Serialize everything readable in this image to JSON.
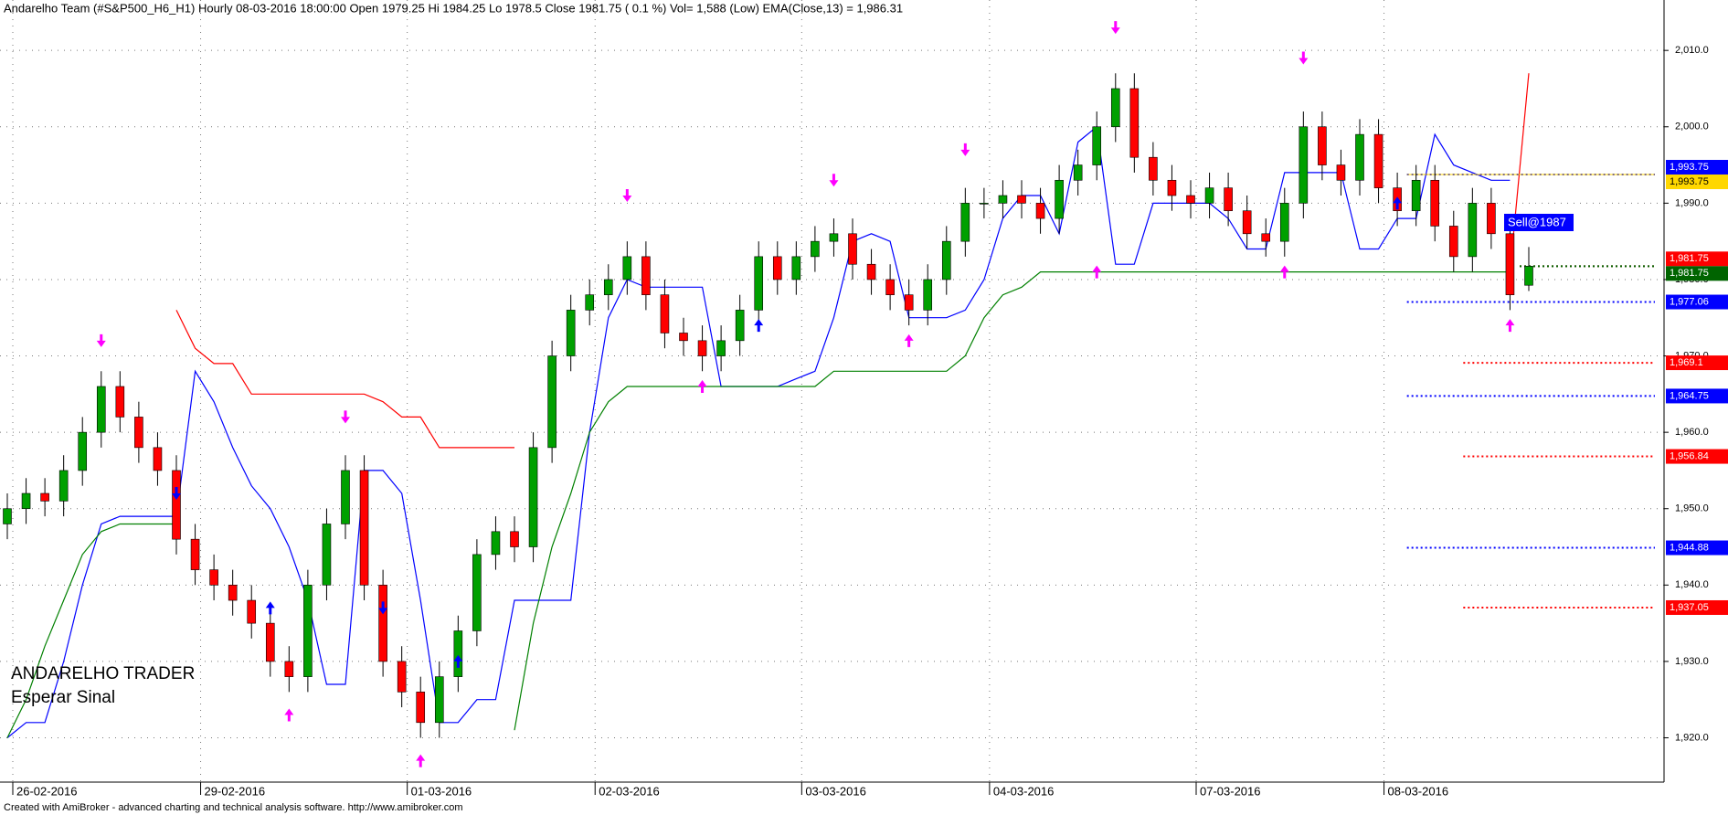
{
  "chart_data": {
    "type": "candlestick",
    "title": "Andarelho Team (#S&P500_H6_H1) Hourly  08-03-2016 18:00:00   Open 1979.25  Hi 1984.25  Lo 1978.5  Close 1981.75  ( 0.1 %)  Vol= 1,588 (Low)  EMA(Close,13) = 1,986.31",
    "categories": [
      "26-02-2016",
      null,
      null,
      null,
      null,
      null,
      null,
      null,
      null,
      null,
      "29-02-2016",
      null,
      null,
      null,
      null,
      null,
      null,
      null,
      null,
      null,
      null,
      "01-03-2016",
      null,
      null,
      null,
      null,
      null,
      null,
      null,
      null,
      null,
      "02-03-2016",
      null,
      null,
      null,
      null,
      null,
      null,
      null,
      null,
      null,
      null,
      "03-03-2016",
      null,
      null,
      null,
      null,
      null,
      null,
      null,
      null,
      null,
      "04-03-2016",
      null,
      null,
      null,
      null,
      null,
      null,
      null,
      null,
      null,
      null,
      "07-03-2016",
      null,
      null,
      null,
      null,
      null,
      null,
      null,
      null,
      null,
      "08-03-2016",
      null,
      null,
      null,
      null,
      null,
      null,
      null,
      null
    ],
    "open": [
      1948,
      1950,
      1952,
      1951,
      1955,
      1960,
      1966,
      1962,
      1958,
      1955,
      1946,
      1942,
      1940,
      1938,
      1935,
      1930,
      1928,
      1940,
      1948,
      1955,
      1940,
      1930,
      1926,
      1922,
      1928,
      1934,
      1944,
      1947,
      1945,
      1958,
      1970,
      1976,
      1978,
      1980,
      1983,
      1978,
      1973,
      1972,
      1970,
      1972,
      1976,
      1983,
      1980,
      1983,
      1985,
      1986,
      1982,
      1980,
      1978,
      1976,
      1980,
      1985,
      1990,
      1990,
      1991,
      1990,
      1988,
      1993,
      1995,
      2000,
      2005,
      1996,
      1993,
      1991,
      1990,
      1992,
      1989,
      1986,
      1985,
      1990,
      2000,
      1995,
      1993,
      1999,
      1992,
      1989,
      1993,
      1987,
      1983,
      1990,
      1986,
      1979.25
    ],
    "high": [
      1952,
      1954,
      1954,
      1957,
      1962,
      1968,
      1968,
      1964,
      1960,
      1957,
      1948,
      1944,
      1942,
      1940,
      1937,
      1932,
      1942,
      1950,
      1957,
      1957,
      1942,
      1932,
      1928,
      1930,
      1936,
      1946,
      1949,
      1949,
      1960,
      1972,
      1978,
      1980,
      1982,
      1985,
      1985,
      1980,
      1975,
      1974,
      1974,
      1978,
      1985,
      1985,
      1985,
      1987,
      1988,
      1988,
      1984,
      1982,
      1980,
      1982,
      1987,
      1992,
      1992,
      1993,
      1993,
      1992,
      1995,
      1997,
      2002,
      2007,
      2007,
      1998,
      1995,
      1993,
      1994,
      1994,
      1991,
      1988,
      1992,
      2002,
      2002,
      1997,
      2001,
      2001,
      1994,
      1995,
      1995,
      1989,
      1992,
      1992,
      1988,
      1984.25
    ],
    "low": [
      1946,
      1948,
      1949,
      1949,
      1953,
      1958,
      1960,
      1956,
      1953,
      1944,
      1940,
      1938,
      1936,
      1933,
      1928,
      1926,
      1926,
      1938,
      1946,
      1938,
      1928,
      1924,
      1920,
      1920,
      1926,
      1932,
      1942,
      1943,
      1943,
      1956,
      1968,
      1974,
      1976,
      1978,
      1976,
      1971,
      1970,
      1968,
      1968,
      1970,
      1974,
      1978,
      1978,
      1981,
      1983,
      1980,
      1978,
      1976,
      1974,
      1974,
      1978,
      1983,
      1988,
      1988,
      1988,
      1986,
      1986,
      1991,
      1993,
      1998,
      1994,
      1991,
      1989,
      1988,
      1988,
      1987,
      1984,
      1983,
      1983,
      1988,
      1993,
      1991,
      1991,
      1990,
      1987,
      1987,
      1985,
      1981,
      1981,
      1984,
      1976,
      1978.5
    ],
    "close": [
      1950,
      1952,
      1951,
      1955,
      1960,
      1966,
      1962,
      1958,
      1955,
      1946,
      1942,
      1940,
      1938,
      1935,
      1930,
      1928,
      1940,
      1948,
      1955,
      1940,
      1930,
      1926,
      1922,
      1928,
      1934,
      1944,
      1947,
      1945,
      1958,
      1970,
      1976,
      1978,
      1980,
      1983,
      1978,
      1973,
      1972,
      1970,
      1972,
      1976,
      1983,
      1980,
      1983,
      1985,
      1986,
      1982,
      1980,
      1978,
      1976,
      1980,
      1985,
      1990,
      1990,
      1991,
      1990,
      1988,
      1993,
      1995,
      2000,
      2005,
      1996,
      1993,
      1991,
      1990,
      1992,
      1989,
      1986,
      1985,
      1990,
      2000,
      1995,
      1993,
      1999,
      1992,
      1989,
      1993,
      1987,
      1983,
      1990,
      1986,
      1978,
      1981.75
    ],
    "up_color": "#00a000",
    "down_color": "#ff0000",
    "series": [
      {
        "color": "#0000ff",
        "values": [
          1920,
          1922,
          1922,
          1930,
          1940,
          1948,
          1949,
          1949,
          1949,
          1949,
          1968,
          1964,
          1958,
          1953,
          1950,
          1945,
          1938,
          1927,
          1927,
          1955,
          1955,
          1952,
          1938,
          1922,
          1922,
          1925,
          1925,
          1938,
          1938,
          1938,
          1938,
          1960,
          1975,
          1980,
          1979,
          1979,
          1979,
          1979,
          1966,
          1966,
          1966,
          1966,
          1967,
          1968,
          1975,
          1985,
          1986,
          1985,
          1975,
          1975,
          1975,
          1976,
          1980,
          1988,
          1991,
          1991,
          1986,
          1998,
          2000,
          1982,
          1982,
          1990,
          1990,
          1990,
          1990,
          1988,
          1984,
          1984,
          1994,
          1994,
          1994,
          1994,
          1984,
          1984,
          1988,
          1988,
          1999,
          1995,
          1994,
          1993,
          1993,
          null
        ]
      },
      {
        "color": "#008000",
        "values": [
          1920,
          1925,
          1932,
          1938,
          1944,
          1947,
          1948,
          1948,
          1948,
          1948,
          null,
          null,
          null,
          null,
          null,
          null,
          null,
          null,
          null,
          null,
          null,
          null,
          null,
          null,
          null,
          null,
          null,
          1921,
          1935,
          1945,
          1952,
          1960,
          1964,
          1966,
          1966,
          1966,
          1966,
          1966,
          1966,
          1966,
          1966,
          1966,
          1966,
          1966,
          1968,
          1968,
          1968,
          1968,
          1968,
          1968,
          1968,
          1970,
          1975,
          1978,
          1979,
          1981,
          1981,
          1981,
          1981,
          1981,
          1981,
          1981,
          1981,
          1981,
          1981,
          1981,
          1981,
          1981,
          1981,
          1981,
          1981,
          1981,
          1981,
          1981,
          1981,
          1981,
          1981,
          1981,
          1981,
          1981,
          1981,
          null
        ]
      },
      {
        "color": "#ff0000",
        "values": [
          null,
          null,
          null,
          null,
          null,
          null,
          null,
          null,
          null,
          1976,
          1971,
          1969,
          1969,
          1965,
          1965,
          1965,
          1965,
          1965,
          1965,
          1965,
          1964,
          1962,
          1962,
          1958,
          1958,
          1958,
          1958,
          1958,
          null,
          null,
          null,
          null,
          null,
          null,
          null,
          null,
          null,
          null,
          null,
          null,
          null,
          null,
          null,
          null,
          null,
          null,
          null,
          null,
          null,
          null,
          null,
          null,
          null,
          null,
          null,
          null,
          null,
          null,
          null,
          null,
          null,
          null,
          null,
          null,
          null,
          null,
          null,
          null,
          null,
          null,
          null,
          null,
          null,
          null,
          null,
          null,
          null,
          null,
          null,
          null,
          1981,
          2007
        ]
      }
    ],
    "levels": [
      {
        "value": 1993.75,
        "label": "1,993.75",
        "color": "#0000ff",
        "start": 75
      },
      {
        "value": 1993.75,
        "label": "1,993.75",
        "color": "#ffd700",
        "start": 75
      },
      {
        "value": 1981.75,
        "label": "1,981.75",
        "color": "#ff0000",
        "start": 81
      },
      {
        "value": 1981.75,
        "label": "1,981.75",
        "color": "#006400",
        "start": 81
      },
      {
        "value": 1977.06,
        "label": "1,977.06",
        "color": "#0000ff",
        "start": 75
      },
      {
        "value": 1969.1,
        "label": "1,969.1",
        "color": "#ff0000",
        "start": 78
      },
      {
        "value": 1964.75,
        "label": "1,964.75",
        "color": "#0000ff",
        "start": 75
      },
      {
        "value": 1956.84,
        "label": "1,956.84",
        "color": "#ff0000",
        "start": 78
      },
      {
        "value": 1944.88,
        "label": "1,944.88",
        "color": "#0000ff",
        "start": 75
      },
      {
        "value": 1937.05,
        "label": "1,937.05",
        "color": "#ff0000",
        "start": 78
      }
    ],
    "markers": [
      {
        "index": 5,
        "value": 1972,
        "dir": "down",
        "color": "#ff00ff"
      },
      {
        "index": 18,
        "value": 1962,
        "dir": "down",
        "color": "#ff00ff"
      },
      {
        "index": 33,
        "value": 1991,
        "dir": "down",
        "color": "#ff00ff"
      },
      {
        "index": 44,
        "value": 1993,
        "dir": "down",
        "color": "#ff00ff"
      },
      {
        "index": 51,
        "value": 1997,
        "dir": "down",
        "color": "#ff00ff"
      },
      {
        "index": 59,
        "value": 2013,
        "dir": "down",
        "color": "#ff00ff"
      },
      {
        "index": 69,
        "value": 2009,
        "dir": "down",
        "color": "#ff00ff"
      },
      {
        "index": 15,
        "value": 1923,
        "dir": "up",
        "color": "#ff00ff"
      },
      {
        "index": 22,
        "value": 1917,
        "dir": "up",
        "color": "#ff00ff"
      },
      {
        "index": 37,
        "value": 1966,
        "dir": "up",
        "color": "#ff00ff"
      },
      {
        "index": 48,
        "value": 1972,
        "dir": "up",
        "color": "#ff00ff"
      },
      {
        "index": 58,
        "value": 1981,
        "dir": "up",
        "color": "#ff00ff"
      },
      {
        "index": 68,
        "value": 1981,
        "dir": "up",
        "color": "#ff00ff"
      },
      {
        "index": 80,
        "value": 1974,
        "dir": "up",
        "color": "#ff00ff"
      },
      {
        "index": 9,
        "value": 1952,
        "dir": "down",
        "color": "#0000ff"
      },
      {
        "index": 20,
        "value": 1937,
        "dir": "down",
        "color": "#0000ff"
      },
      {
        "index": 14,
        "value": 1937,
        "dir": "up",
        "color": "#0000ff"
      },
      {
        "index": 24,
        "value": 1930,
        "dir": "up",
        "color": "#0000ff"
      },
      {
        "index": 40,
        "value": 1974,
        "dir": "up",
        "color": "#0000ff"
      },
      {
        "index": 74,
        "value": 1990,
        "dir": "up",
        "color": "#0000ff"
      }
    ],
    "ylim": [
      1914.2,
      2016.6
    ],
    "yticks": [
      {
        "value": 1920,
        "label": "1,920.0"
      },
      {
        "value": 1930,
        "label": "1,930.0"
      },
      {
        "value": 1940,
        "label": "1,940.0"
      },
      {
        "value": 1950,
        "label": "1,950.0"
      },
      {
        "value": 1960,
        "label": "1,960.0"
      },
      {
        "value": 1970,
        "label": "1,970.0"
      },
      {
        "value": 1980,
        "label": "1,980.0"
      },
      {
        "value": 1990,
        "label": "1,990.0"
      },
      {
        "value": 2000,
        "label": "2,000.0"
      },
      {
        "value": 2010,
        "label": "2,010.0"
      }
    ],
    "grid": true,
    "annotations": [
      "ANDARELHO TRADER",
      "Esperar Sinal",
      "Sell@1987"
    ]
  },
  "footer": "Created with AmiBroker - advanced charting and technical analysis software. http://www.amibroker.com"
}
